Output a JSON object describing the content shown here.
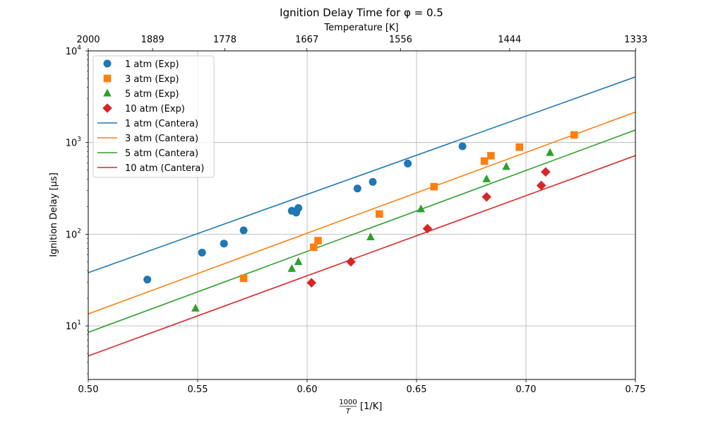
{
  "chart_data": {
    "type": "scatter",
    "title": "Ignition Delay Time for φ = 0.5",
    "xlabel_frac_num": "1000",
    "xlabel_frac_den": "T",
    "xlabel_unit": "[1/K]",
    "ylabel": "Ignition Delay [μs]",
    "top_xlabel": "Temperature [K]",
    "xlim": [
      0.5,
      0.75
    ],
    "ylim": [
      2.6,
      10000
    ],
    "y_scale": "log",
    "grid": true,
    "legend_position": "top-left",
    "x_ticks": [
      {
        "value": 0.5,
        "label": "0.50"
      },
      {
        "value": 0.55,
        "label": "0.55"
      },
      {
        "value": 0.6,
        "label": "0.60"
      },
      {
        "value": 0.65,
        "label": "0.65"
      },
      {
        "value": 0.7,
        "label": "0.70"
      },
      {
        "value": 0.75,
        "label": "0.75"
      }
    ],
    "y_ticks": [
      {
        "value": 10,
        "base": "10",
        "exp": "1"
      },
      {
        "value": 100,
        "base": "10",
        "exp": "2"
      },
      {
        "value": 1000,
        "base": "10",
        "exp": "3"
      },
      {
        "value": 10000,
        "base": "10",
        "exp": "4"
      }
    ],
    "top_ticks": [
      {
        "value": 0.5,
        "label": "2000"
      },
      {
        "value": 0.5294,
        "label": "1889"
      },
      {
        "value": 0.5624,
        "label": "1778"
      },
      {
        "value": 0.5999,
        "label": "1667"
      },
      {
        "value": 0.6427,
        "label": "1556"
      },
      {
        "value": 0.6925,
        "label": "1444"
      },
      {
        "value": 0.7502,
        "label": "1333"
      }
    ],
    "scatter_series": [
      {
        "name": "1 atm (Exp)",
        "color": "#1f77b4",
        "marker": "circle",
        "points": [
          {
            "x": 0.527,
            "y": 32
          },
          {
            "x": 0.552,
            "y": 63
          },
          {
            "x": 0.562,
            "y": 79
          },
          {
            "x": 0.571,
            "y": 110
          },
          {
            "x": 0.593,
            "y": 180
          },
          {
            "x": 0.595,
            "y": 172
          },
          {
            "x": 0.596,
            "y": 193
          },
          {
            "x": 0.623,
            "y": 315
          },
          {
            "x": 0.63,
            "y": 372
          },
          {
            "x": 0.646,
            "y": 590
          },
          {
            "x": 0.671,
            "y": 910
          }
        ]
      },
      {
        "name": "3 atm (Exp)",
        "color": "#ff7f0e",
        "marker": "square",
        "points": [
          {
            "x": 0.571,
            "y": 33
          },
          {
            "x": 0.603,
            "y": 72
          },
          {
            "x": 0.605,
            "y": 85
          },
          {
            "x": 0.633,
            "y": 166
          },
          {
            "x": 0.658,
            "y": 330
          },
          {
            "x": 0.681,
            "y": 628
          },
          {
            "x": 0.684,
            "y": 718
          },
          {
            "x": 0.697,
            "y": 890
          },
          {
            "x": 0.722,
            "y": 1210
          }
        ]
      },
      {
        "name": "5 atm (Exp)",
        "color": "#2ca02c",
        "marker": "triangle",
        "points": [
          {
            "x": 0.549,
            "y": 15.5
          },
          {
            "x": 0.593,
            "y": 42
          },
          {
            "x": 0.596,
            "y": 50
          },
          {
            "x": 0.629,
            "y": 93
          },
          {
            "x": 0.652,
            "y": 188
          },
          {
            "x": 0.682,
            "y": 400
          },
          {
            "x": 0.691,
            "y": 545
          },
          {
            "x": 0.711,
            "y": 775
          }
        ]
      },
      {
        "name": "10 atm (Exp)",
        "color": "#d62728",
        "marker": "diamond",
        "points": [
          {
            "x": 0.602,
            "y": 29.5
          },
          {
            "x": 0.62,
            "y": 50
          },
          {
            "x": 0.655,
            "y": 115
          },
          {
            "x": 0.682,
            "y": 255
          },
          {
            "x": 0.707,
            "y": 340
          },
          {
            "x": 0.709,
            "y": 478
          }
        ]
      }
    ],
    "line_series": [
      {
        "name": "1 atm (Cantera)",
        "color": "#1f77b4",
        "points": [
          {
            "x": 0.5,
            "y": 38
          },
          {
            "x": 0.75,
            "y": 5200
          }
        ]
      },
      {
        "name": "3 atm (Cantera)",
        "color": "#ff7f0e",
        "points": [
          {
            "x": 0.5,
            "y": 13.5
          },
          {
            "x": 0.75,
            "y": 2150
          }
        ]
      },
      {
        "name": "5 atm (Cantera)",
        "color": "#2ca02c",
        "points": [
          {
            "x": 0.5,
            "y": 8.5
          },
          {
            "x": 0.75,
            "y": 1370
          }
        ]
      },
      {
        "name": "10 atm (Cantera)",
        "color": "#d62728",
        "points": [
          {
            "x": 0.5,
            "y": 4.7
          },
          {
            "x": 0.75,
            "y": 720
          }
        ]
      }
    ]
  }
}
